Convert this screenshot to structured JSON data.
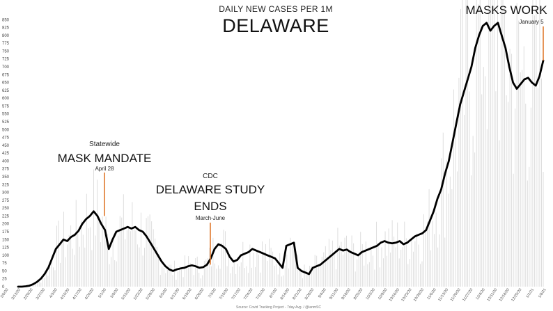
{
  "chart_data": {
    "type": "line",
    "title": "DELAWARE",
    "subtitle": "DAILY NEW CASES PER 1M",
    "source": "Source: Covid Tracking Project - 7day Avg. / @ianmSC",
    "ylim": [
      0,
      875
    ],
    "y_ticks": [
      0,
      25,
      50,
      75,
      100,
      125,
      150,
      175,
      200,
      225,
      250,
      275,
      300,
      325,
      350,
      375,
      400,
      425,
      450,
      475,
      500,
      525,
      550,
      575,
      600,
      625,
      650,
      675,
      700,
      725,
      750,
      775,
      800,
      825,
      850
    ],
    "x_ticks": [
      "3/6/20",
      "3/13/20",
      "3/20/20",
      "3/27/20",
      "4/3/20",
      "4/10/20",
      "4/17/20",
      "4/24/20",
      "5/1/20",
      "5/8/20",
      "5/15/20",
      "5/22/20",
      "5/29/20",
      "6/5/20",
      "6/12/20",
      "6/19/20",
      "6/26/20",
      "7/3/20",
      "7/10/20",
      "7/17/20",
      "7/24/20",
      "7/31/20",
      "8/7/20",
      "8/14/20",
      "8/21/20",
      "8/28/20",
      "9/4/20",
      "9/11/20",
      "9/18/20",
      "9/25/20",
      "10/2/20",
      "10/9/20",
      "10/16/20",
      "10/23/20",
      "10/30/20",
      "11/6/20",
      "11/13/20",
      "11/20/20",
      "11/27/20",
      "12/4/20",
      "12/11/20",
      "12/18/20",
      "12/25/20",
      "1/1/21",
      "1/8/21"
    ],
    "series": [
      {
        "values": [
          0,
          0,
          1,
          3,
          8,
          15,
          25,
          40,
          60,
          90,
          120,
          135,
          150,
          145,
          158,
          165,
          178,
          200,
          215,
          225,
          240,
          225,
          200,
          180,
          120,
          150,
          175,
          180,
          185,
          190,
          185,
          190,
          180,
          175,
          160,
          140,
          120,
          100,
          80,
          65,
          55,
          50,
          55,
          58,
          60,
          65,
          68,
          65,
          60,
          62,
          70,
          90,
          120,
          135,
          130,
          120,
          95,
          80,
          85,
          100,
          105,
          110,
          120,
          115,
          110,
          105,
          100,
          95,
          90,
          75,
          60,
          130,
          135,
          140,
          60,
          50,
          45,
          40,
          60,
          65,
          70,
          80,
          90,
          100,
          110,
          120,
          115,
          118,
          110,
          105,
          100,
          110,
          115,
          120,
          125,
          130,
          140,
          145,
          140,
          138,
          140,
          145,
          135,
          140,
          150,
          160,
          165,
          170,
          180,
          210,
          240,
          280,
          310,
          360,
          400,
          460,
          520,
          580,
          620,
          660,
          700,
          760,
          800,
          830,
          840,
          815,
          830,
          840,
          800,
          760,
          700,
          650,
          630,
          645,
          660,
          665,
          650,
          640,
          670,
          720
        ]
      }
    ]
  },
  "annotations": {
    "statewide": "Statewide",
    "mask_mandate": "MASK MANDATE",
    "april_date": "April 28",
    "cdc": "CDC",
    "delaware_study": "DELAWARE STUDY",
    "ends": "ENDS",
    "march_june": "March-June",
    "masks_work": "MASKS WORK",
    "january_date": "January 5"
  },
  "colors": {
    "line": "#000000",
    "marker": "#e07a2e",
    "bars": "#dadada"
  }
}
